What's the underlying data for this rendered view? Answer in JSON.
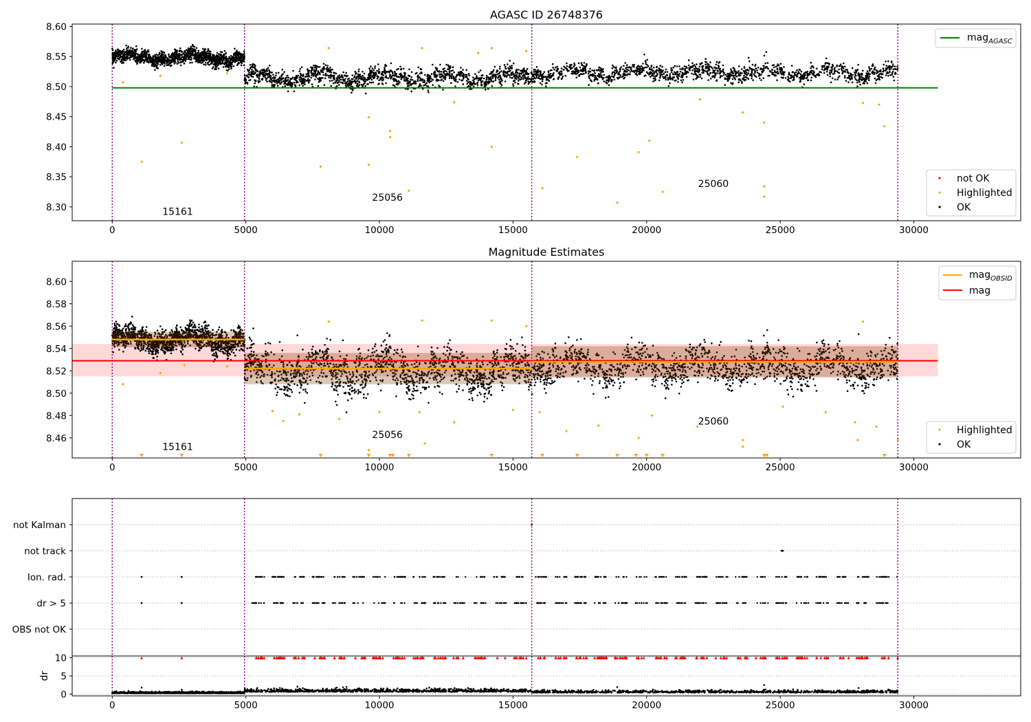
{
  "colors": {
    "ok": "#000000",
    "highlighted": "#ffa500",
    "not_ok": "#ff0000",
    "agasc_line": "#008000",
    "mag_line": "#ff0000",
    "obsid_line": "#ffa500",
    "obs_boundary": "#800080",
    "band": "#ffcccc"
  },
  "chart_data": [
    {
      "type": "scatter",
      "title": "AGASC ID 26748376",
      "xlim": [
        -1500,
        34000
      ],
      "ylim": [
        8.277,
        8.604
      ],
      "yticks": [
        8.3,
        8.35,
        8.4,
        8.45,
        8.5,
        8.55,
        8.6
      ],
      "xticks": [
        0,
        5000,
        10000,
        15000,
        20000,
        25000,
        30000
      ],
      "obs_boundaries": [
        0,
        4950,
        15700,
        29400
      ],
      "obsid_labels": [
        {
          "text": "15161",
          "x": 2450,
          "y": 8.287
        },
        {
          "text": "25056",
          "x": 10300,
          "y": 8.31
        },
        {
          "text": "25060",
          "x": 22500,
          "y": 8.333
        }
      ],
      "lines": [
        {
          "name": "mag_AGASC",
          "y": 8.498,
          "x": [
            0,
            30900
          ]
        }
      ],
      "ok_segments": [
        {
          "x": [
            0,
            4950
          ],
          "center": 8.548,
          "spread": 0.01
        },
        {
          "x": [
            4950,
            15700
          ],
          "center": 8.515,
          "spread": 0.013
        },
        {
          "x": [
            15700,
            29400
          ],
          "center": 8.523,
          "spread": 0.012
        }
      ],
      "highlighted_points": [
        [
          1100,
          8.375
        ],
        [
          2600,
          8.407
        ],
        [
          4300,
          8.522
        ],
        [
          7800,
          8.367
        ],
        [
          9600,
          8.449
        ],
        [
          9600,
          8.37
        ],
        [
          10400,
          8.426
        ],
        [
          10400,
          8.416
        ],
        [
          11100,
          8.327
        ],
        [
          14200,
          8.4
        ],
        [
          16100,
          8.331
        ],
        [
          17400,
          8.383
        ],
        [
          18900,
          8.307
        ],
        [
          19700,
          8.391
        ],
        [
          20100,
          8.41
        ],
        [
          20600,
          8.325
        ],
        [
          22000,
          8.479
        ],
        [
          23600,
          8.457
        ],
        [
          24400,
          8.44
        ],
        [
          24400,
          8.334
        ],
        [
          24400,
          8.317
        ],
        [
          28100,
          8.473
        ],
        [
          28700,
          8.47
        ],
        [
          28900,
          8.434
        ],
        [
          8100,
          8.564
        ],
        [
          11600,
          8.564
        ],
        [
          13700,
          8.556
        ],
        [
          14200,
          8.564
        ],
        [
          15500,
          8.559
        ],
        [
          400,
          8.507
        ],
        [
          1800,
          8.518
        ],
        [
          12800,
          8.474
        ]
      ],
      "legend": {
        "upper": [
          "mag_AGASC"
        ],
        "lower": [
          "not OK",
          "Highlighted",
          "OK"
        ]
      }
    },
    {
      "type": "scatter",
      "title": "Magnitude Estimates",
      "xlim": [
        -1500,
        34000
      ],
      "ylim": [
        8.442,
        8.618
      ],
      "yticks": [
        8.46,
        8.48,
        8.5,
        8.52,
        8.54,
        8.56,
        8.58,
        8.6
      ],
      "xticks": [
        0,
        5000,
        10000,
        15000,
        20000,
        25000,
        30000
      ],
      "obs_boundaries": [
        0,
        4950,
        15700,
        29400
      ],
      "obsid_labels": [
        {
          "text": "15161",
          "x": 2450,
          "y": 8.449
        },
        {
          "text": "25056",
          "x": 10300,
          "y": 8.46
        },
        {
          "text": "25060",
          "x": 22500,
          "y": 8.472
        }
      ],
      "mag_line": {
        "y": 8.529,
        "x": [
          -1500,
          30900
        ]
      },
      "mag_band": [
        8.515,
        8.544
      ],
      "obsid_mags": [
        {
          "x": [
            0,
            4950
          ],
          "y": 8.548,
          "band": [
            8.541,
            8.555
          ]
        },
        {
          "x": [
            4950,
            15700
          ],
          "y": 8.522,
          "band": [
            8.508,
            8.536
          ]
        },
        {
          "x": [
            15700,
            29400
          ],
          "y": 8.528,
          "band": [
            8.514,
            8.542
          ]
        }
      ],
      "ok_segments": [
        {
          "x": [
            0,
            4950
          ],
          "center": 8.548,
          "spread": 0.009
        },
        {
          "x": [
            4950,
            15700
          ],
          "center": 8.52,
          "spread": 0.016
        },
        {
          "x": [
            15700,
            29400
          ],
          "center": 8.524,
          "spread": 0.014
        }
      ],
      "highlighted_points": [
        [
          400,
          8.508
        ],
        [
          1800,
          8.518
        ],
        [
          2700,
          8.525
        ],
        [
          4300,
          8.524
        ],
        [
          6000,
          8.484
        ],
        [
          6400,
          8.475
        ],
        [
          7000,
          8.481
        ],
        [
          8100,
          8.564
        ],
        [
          8500,
          8.477
        ],
        [
          9600,
          8.449
        ],
        [
          10000,
          8.483
        ],
        [
          11500,
          8.483
        ],
        [
          11700,
          8.455
        ],
        [
          12800,
          8.474
        ],
        [
          15000,
          8.485
        ],
        [
          16000,
          8.483
        ],
        [
          17000,
          8.466
        ],
        [
          18200,
          8.471
        ],
        [
          19700,
          8.46
        ],
        [
          20200,
          8.48
        ],
        [
          21900,
          8.47
        ],
        [
          23600,
          8.458
        ],
        [
          23600,
          8.452
        ],
        [
          25100,
          8.488
        ],
        [
          26700,
          8.483
        ],
        [
          27800,
          8.474
        ],
        [
          27900,
          8.458
        ],
        [
          28600,
          8.47
        ],
        [
          29400,
          8.458
        ],
        [
          11600,
          8.565
        ],
        [
          14200,
          8.565
        ],
        [
          15500,
          8.56
        ],
        [
          28100,
          8.564
        ]
      ],
      "clipped_markers_x": [
        1100,
        2600,
        7800,
        9600,
        10400,
        10500,
        11100,
        14200,
        16100,
        17400,
        18900,
        19600,
        20000,
        20600,
        24400,
        24500,
        28900
      ],
      "legend": {
        "upper": [
          "mag_OBSID",
          "mag"
        ],
        "lower": [
          "Highlighted",
          "OK"
        ]
      }
    },
    {
      "type": "scatter",
      "xlim": [
        -1500,
        34000
      ],
      "categories": [
        "not Kalman",
        "not track",
        "Ion. rad.",
        "dr > 5",
        "OBS not OK"
      ],
      "obs_boundaries": [
        0,
        4950,
        15700,
        29400
      ],
      "flag_points": {
        "not Kalman": [
          15700
        ],
        "not track": [
          25050,
          25100
        ],
        "Ion. rad.": [
          1100,
          2600
        ],
        "dr > 5": [
          1100,
          2600
        ],
        "OBS not OK": []
      },
      "flag_segments": {
        "Ion. rad.": [
          [
            5000,
            15700
          ],
          [
            15800,
            29400
          ]
        ],
        "dr > 5": [
          [
            5000,
            15700
          ],
          [
            15800,
            29400
          ]
        ]
      }
    },
    {
      "type": "scatter",
      "xlim": [
        -1500,
        34000
      ],
      "ylabel": "dr",
      "ylim": [
        -0.5,
        10.5
      ],
      "yticks": [
        0,
        5,
        10
      ],
      "xticks": [
        0,
        5000,
        10000,
        15000,
        20000,
        25000,
        30000
      ],
      "obs_boundaries": [
        0,
        4950,
        15700,
        29400
      ],
      "dr_segments": [
        {
          "x": [
            0,
            4950
          ],
          "center": 0.2,
          "spread": 0.2
        },
        {
          "x": [
            4950,
            15700
          ],
          "center": 0.6,
          "spread": 0.4
        },
        {
          "x": [
            15700,
            29400
          ],
          "center": 0.4,
          "spread": 0.3
        }
      ],
      "dr_outliers": [
        [
          1100,
          1.8
        ],
        [
          2600,
          1.2
        ],
        [
          18900,
          1.9
        ],
        [
          24400,
          2.5
        ]
      ],
      "capped_markers": {
        "y": 10,
        "x_points": [
          1100,
          2600
        ],
        "x_segments": [
          [
            5000,
            15700
          ],
          [
            15800,
            29400
          ]
        ]
      }
    }
  ],
  "axis_labels": {
    "panel1": {
      "yticks": [
        "8.30",
        "8.35",
        "8.40",
        "8.45",
        "8.50",
        "8.55",
        "8.60"
      ],
      "xticks": [
        "0",
        "5000",
        "10000",
        "15000",
        "20000",
        "25000",
        "30000"
      ]
    },
    "panel2": {
      "yticks": [
        "8.46",
        "8.48",
        "8.50",
        "8.52",
        "8.54",
        "8.56",
        "8.58",
        "8.60"
      ],
      "xticks": [
        "0",
        "5000",
        "10000",
        "15000",
        "20000",
        "25000",
        "30000"
      ]
    },
    "panel4": {
      "yticks": [
        "0",
        "5",
        "10"
      ],
      "xticks": [
        "0",
        "5000",
        "10000",
        "15000",
        "20000",
        "25000",
        "30000"
      ]
    }
  },
  "legend_text": {
    "agasc_main": "mag",
    "agasc_sub": "AGASC",
    "obsid_main": "mag",
    "obsid_sub": "OBSID",
    "mag": "mag",
    "not_ok": "not OK",
    "highlighted": "Highlighted",
    "ok": "OK"
  }
}
